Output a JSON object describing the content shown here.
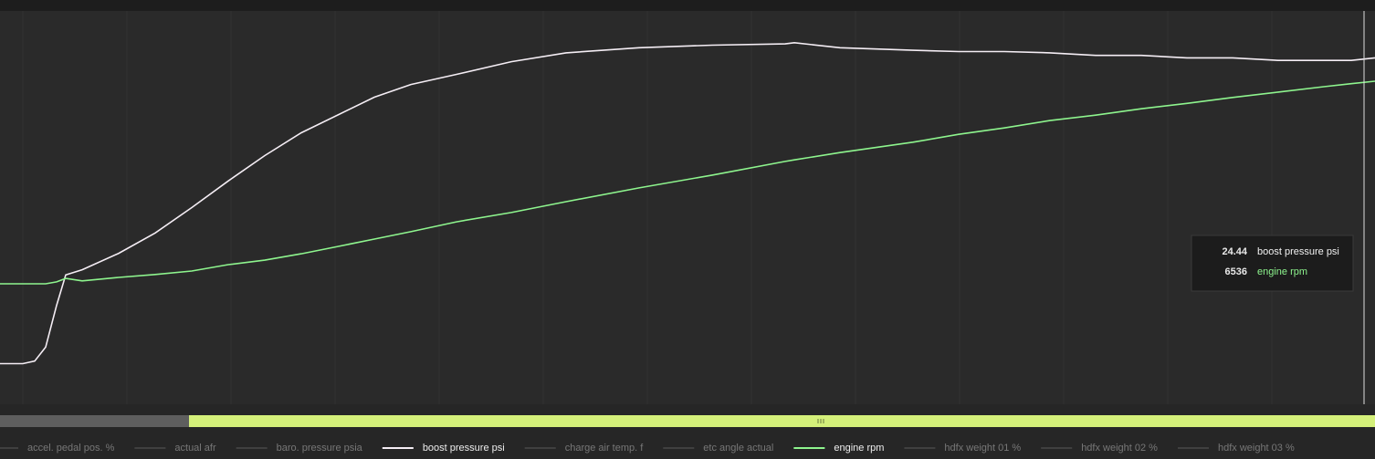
{
  "chart_data": {
    "type": "line",
    "x": [
      0,
      2.5,
      3.8,
      5,
      6.2,
      7.2,
      9,
      13,
      17,
      21,
      25,
      29,
      33,
      37,
      41,
      45,
      50,
      56,
      62,
      70,
      78,
      86,
      87,
      92,
      100,
      105,
      110,
      115,
      120,
      125,
      130,
      135,
      140,
      145,
      148,
      150.6
    ],
    "xlim": [
      0,
      150.6
    ],
    "ylim": [
      -3,
      28
    ],
    "y2lim": [
      0,
      8000
    ],
    "series": [
      {
        "name": "accel. pedal pos. %",
        "color": "#5a5a5a",
        "visible": false
      },
      {
        "name": "actual afr",
        "color": "#5a5a5a",
        "visible": false
      },
      {
        "name": "baro. pressure psia",
        "color": "#5a5a5a",
        "visible": false
      },
      {
        "name": "boost pressure psi",
        "color": "#f5eef5",
        "visible": true,
        "values": [
          0.2,
          0.2,
          0.4,
          1.5,
          4.8,
          7.2,
          7.6,
          8.9,
          10.5,
          12.5,
          14.6,
          16.6,
          18.4,
          19.8,
          21.2,
          22.2,
          23.0,
          24.0,
          24.7,
          25.1,
          25.3,
          25.4,
          25.5,
          25.1,
          24.9,
          24.8,
          24.8,
          24.7,
          24.5,
          24.5,
          24.3,
          24.3,
          24.1,
          24.1,
          24.1,
          24.3
        ]
      },
      {
        "name": "charge air temp. f",
        "color": "#5a5a5a",
        "visible": false
      },
      {
        "name": "etc angle actual",
        "color": "#5a5a5a",
        "visible": false
      },
      {
        "name": "engine rpm",
        "color": "#8ef58e",
        "visible": true,
        "axis": "y2",
        "values": [
          2450,
          2450,
          2450,
          2450,
          2490,
          2560,
          2510,
          2580,
          2640,
          2710,
          2840,
          2930,
          3060,
          3210,
          3360,
          3510,
          3710,
          3900,
          4120,
          4400,
          4660,
          4940,
          4970,
          5120,
          5330,
          5490,
          5620,
          5770,
          5880,
          6010,
          6120,
          6240,
          6350,
          6460,
          6520,
          6570
        ]
      },
      {
        "name": "hdfx weight 01 %",
        "color": "#5a5a5a",
        "visible": false
      },
      {
        "name": "hdfx weight 02 %",
        "color": "#5a5a5a",
        "visible": false
      },
      {
        "name": "hdfx weight 03 %",
        "color": "#5a5a5a",
        "visible": false
      }
    ],
    "cursor": {
      "x": 149.4,
      "values": [
        24.44,
        6536
      ]
    }
  }
}
